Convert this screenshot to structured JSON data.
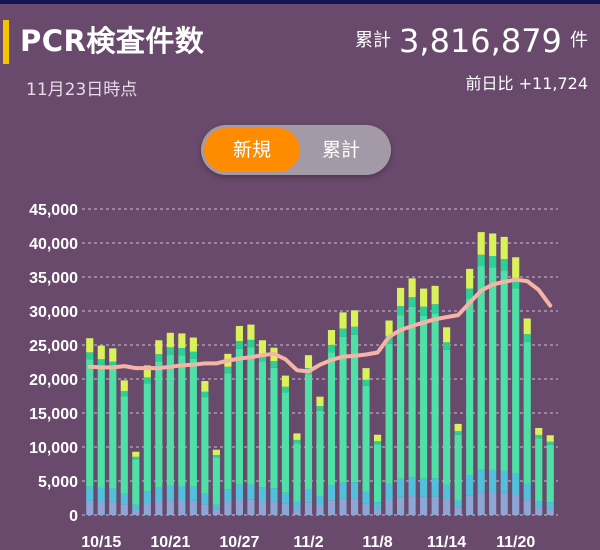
{
  "header": {
    "title": "PCR検査件数",
    "as_of": "11月23日時点",
    "cumulative_label": "累計",
    "cumulative_value": "3,816,879",
    "cumulative_unit": "件",
    "diff_label": "前日比",
    "diff_value": "+11,724"
  },
  "toggle": {
    "active": "新規",
    "inactive": "累計"
  },
  "colors": {
    "background": "#6a4a6c",
    "accent": "#f5c400",
    "toggle_active": "#ff8c00",
    "stack": [
      "#8ea6d6",
      "#52c0dc",
      "#4ee0a6",
      "#2ad096",
      "#d9f25a"
    ],
    "average_line": "#f6b4a6"
  },
  "chart_data": {
    "type": "bar",
    "stacked": true,
    "ylim": [
      0,
      45000
    ],
    "yticks": [
      "45,000",
      "40,000",
      "35,000",
      "30,000",
      "25,000",
      "20,000",
      "15,000",
      "10,000",
      "5,000",
      "0"
    ],
    "xtick_labels": [
      "10/15",
      "10/21",
      "10/27",
      "11/2",
      "11/8",
      "11/14",
      "11/20"
    ],
    "grid": true,
    "series_count": 5,
    "totals": [
      26000,
      24900,
      24500,
      19800,
      9300,
      22000,
      25700,
      26800,
      26700,
      26100,
      19700,
      9600,
      23700,
      27800,
      28000,
      25700,
      24600,
      20500,
      12000,
      23500,
      17400,
      27200,
      29800,
      30100,
      21600,
      11800,
      28600,
      33400,
      34800,
      33300,
      33700,
      27600,
      13400,
      36200,
      41600,
      41400,
      40900,
      37900,
      28900,
      12800,
      11724
    ],
    "stack_fractions": [
      0.08,
      0.08,
      0.72,
      0.04,
      0.08
    ],
    "average_line": [
      21800,
      21700,
      21700,
      21900,
      21600,
      21600,
      21600,
      21800,
      22000,
      22100,
      22300,
      22300,
      22700,
      23000,
      23200,
      23500,
      23700,
      22900,
      21300,
      21100,
      22100,
      22800,
      23300,
      23400,
      23600,
      23900,
      26200,
      27200,
      27800,
      28300,
      28800,
      29100,
      29400,
      31200,
      33000,
      33900,
      34300,
      34600,
      34400,
      33100,
      30800
    ]
  }
}
